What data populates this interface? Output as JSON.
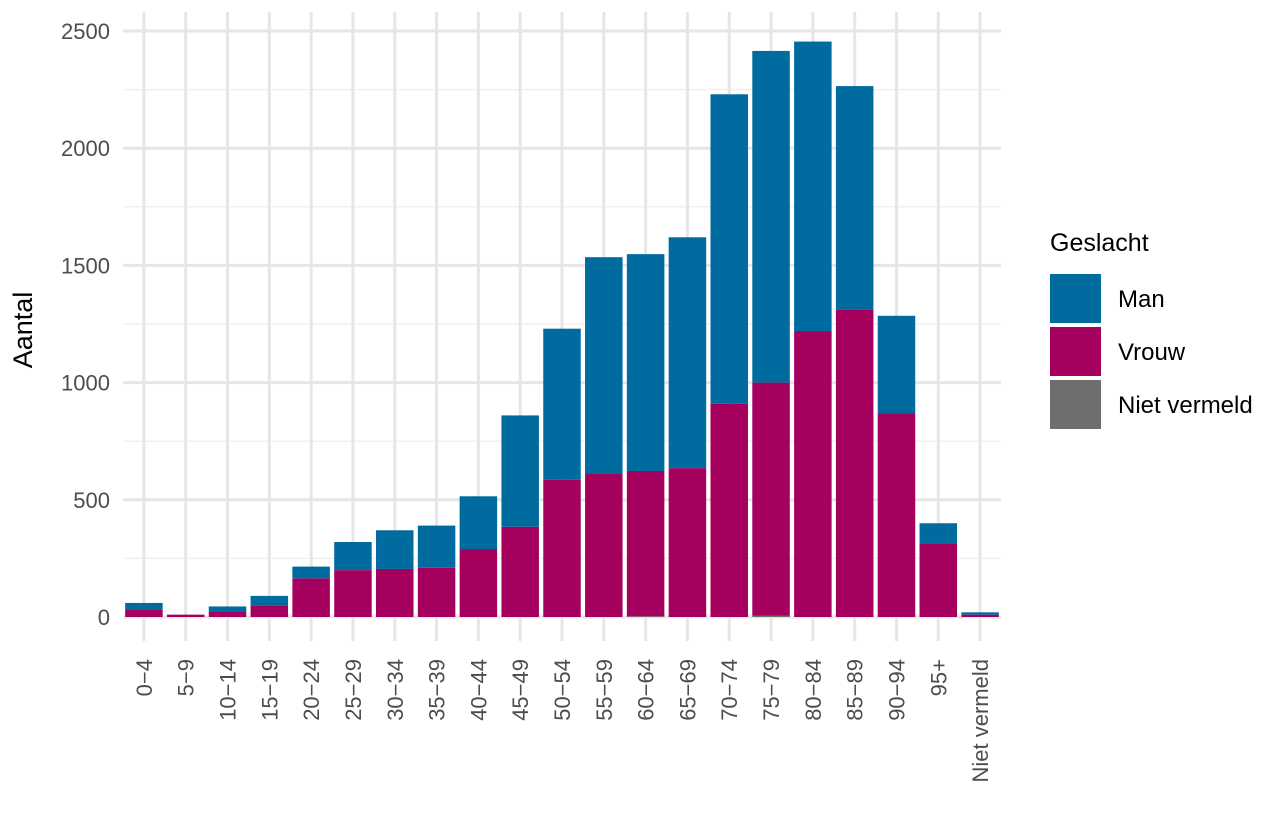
{
  "chart_data": {
    "type": "bar",
    "stacked": true,
    "title": "",
    "xlabel": "",
    "ylabel": "Aantal",
    "ylim": [
      0,
      2500
    ],
    "yticks": [
      0,
      500,
      1000,
      1500,
      2000,
      2500
    ],
    "grid": true,
    "categories": [
      "0−4",
      "5−9",
      "10−14",
      "15−19",
      "20−24",
      "25−29",
      "30−34",
      "35−39",
      "40−44",
      "45−49",
      "50−54",
      "55−59",
      "60−64",
      "65−69",
      "70−74",
      "75−79",
      "80−84",
      "85−89",
      "90−94",
      "95+",
      "Niet vermeld"
    ],
    "series": [
      {
        "name": "Niet vermeld",
        "color": "#6e6e6e",
        "values": [
          0,
          0,
          0,
          0,
          0,
          0,
          0,
          0,
          0,
          0,
          0,
          0,
          3,
          0,
          0,
          5,
          0,
          0,
          0,
          0,
          0
        ]
      },
      {
        "name": "Vrouw",
        "color": "#a6005e",
        "values": [
          30,
          10,
          25,
          50,
          165,
          200,
          205,
          210,
          290,
          385,
          585,
          610,
          620,
          635,
          910,
          995,
          1220,
          1310,
          870,
          315,
          10
        ]
      },
      {
        "name": "Man",
        "color": "#006b9f",
        "values": [
          30,
          0,
          20,
          40,
          50,
          120,
          165,
          180,
          225,
          475,
          645,
          925,
          925,
          985,
          1320,
          1415,
          1235,
          955,
          415,
          85,
          10
        ]
      }
    ],
    "legend": {
      "title": "Geslacht",
      "position": "right",
      "entries": [
        {
          "label": "Man",
          "color": "#006b9f"
        },
        {
          "label": "Vrouw",
          "color": "#a6005e"
        },
        {
          "label": "Niet vermeld",
          "color": "#6e6e6e"
        }
      ]
    }
  }
}
